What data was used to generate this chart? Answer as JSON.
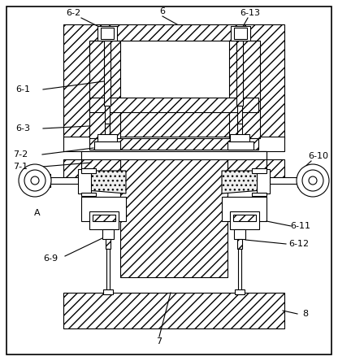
{
  "bg_color": "#ffffff",
  "line_color": "#000000",
  "figsize": [
    4.16,
    4.44
  ],
  "dpi": 100,
  "fs": 8.0
}
